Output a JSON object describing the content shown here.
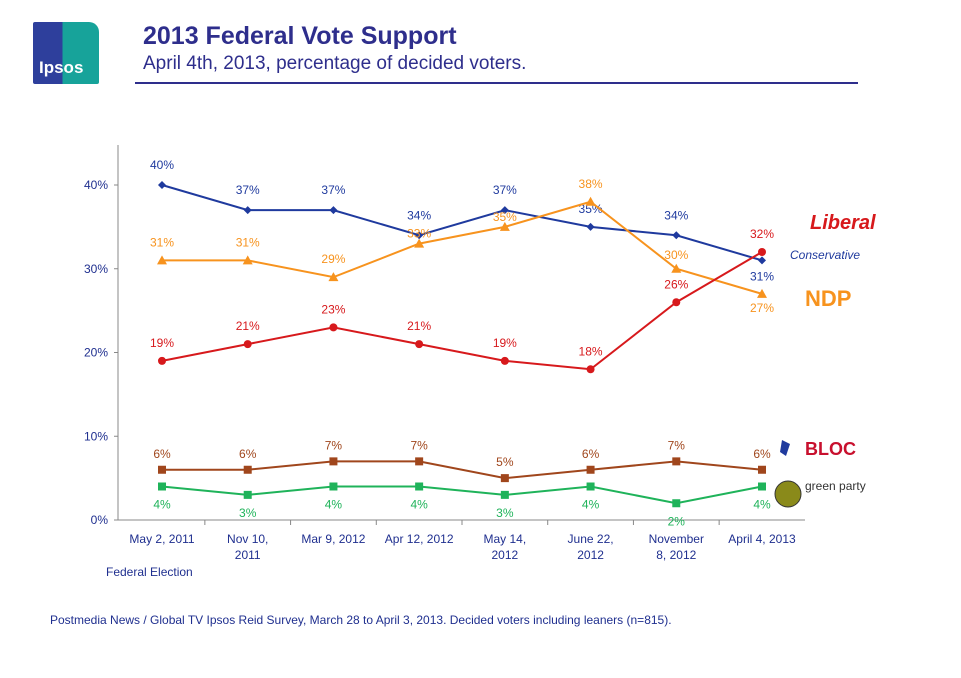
{
  "header": {
    "logo_text": "Ipsos",
    "title": "2013 Federal Vote Support",
    "subtitle": "April 4th, 2013, percentage of decided voters."
  },
  "footnote": "Postmedia News / Global TV Ipsos Reid Survey, March 28 to April 3, 2013. Decided voters including leaners (n=815).",
  "chart_data": {
    "type": "line",
    "categories": [
      [
        "May 2, 2011",
        ""
      ],
      [
        "Nov 10,",
        "2011"
      ],
      [
        "Mar 9, 2012",
        ""
      ],
      [
        "Apr 12, 2012",
        ""
      ],
      [
        "May 14,",
        "2012"
      ],
      [
        "June 22,",
        "2012"
      ],
      [
        "November",
        "8, 2012"
      ],
      [
        "April 4, 2013",
        ""
      ]
    ],
    "category_note": "Federal Election",
    "ylim": [
      0,
      40
    ],
    "yticks": [
      "0%",
      "10%",
      "20%",
      "30%",
      "40%"
    ],
    "grid": false,
    "legend": "right (party logos)",
    "series": [
      {
        "name": "Conservative",
        "color": "#1f3a9e",
        "marker": "diamond",
        "values": [
          40,
          37,
          37,
          34,
          37,
          35,
          34,
          31
        ]
      },
      {
        "name": "NDP",
        "color": "#f7931e",
        "marker": "triangle",
        "values": [
          31,
          31,
          29,
          33,
          35,
          38,
          30,
          27
        ]
      },
      {
        "name": "Liberal",
        "color": "#d7191c",
        "marker": "circle",
        "values": [
          19,
          21,
          23,
          21,
          19,
          18,
          26,
          32
        ]
      },
      {
        "name": "BLOC QUÉBÉCOIS",
        "color": "#a0461c",
        "marker": "square",
        "values": [
          6,
          6,
          7,
          7,
          5,
          6,
          7,
          6
        ]
      },
      {
        "name": "green party",
        "color": "#1fb35a",
        "marker": "square",
        "values": [
          4,
          3,
          4,
          4,
          3,
          4,
          2,
          4
        ]
      }
    ]
  }
}
